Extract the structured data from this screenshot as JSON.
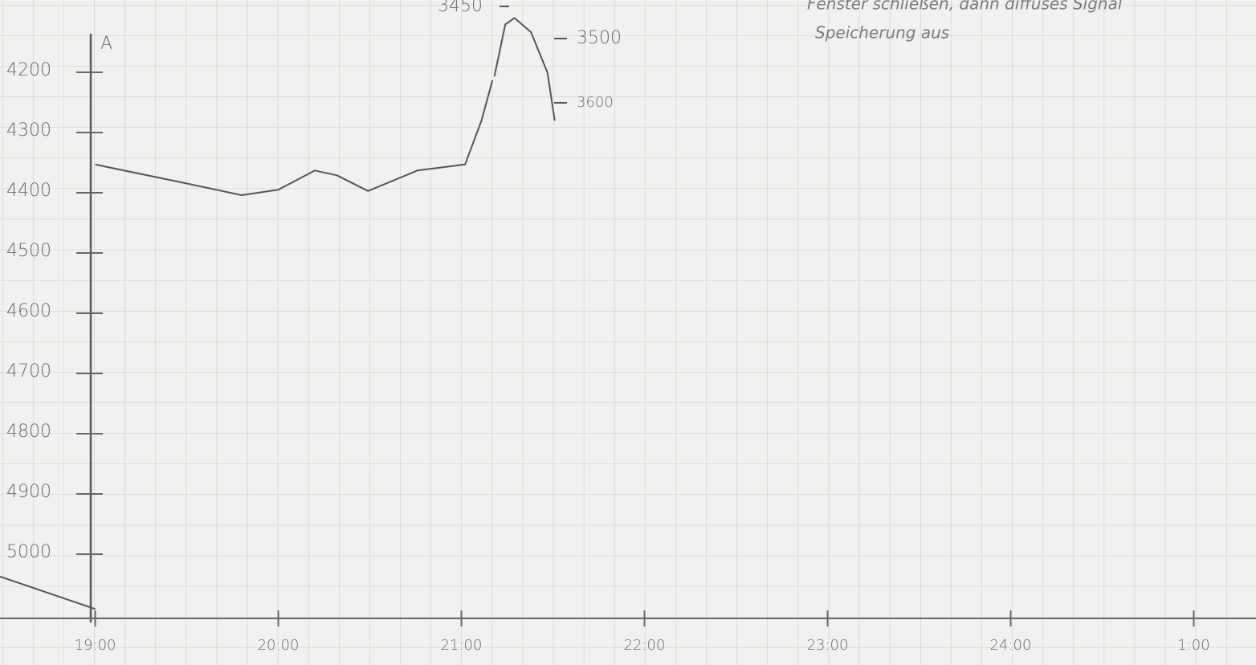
{
  "chart_data": {
    "type": "line",
    "y_label": "A",
    "annotations": [
      "Fenster schließen, dann diffuses Signal",
      "Speicherung aus"
    ],
    "xlim": [
      18.48,
      25.34
    ],
    "xticks": [
      {
        "value": 19,
        "label": "19:00"
      },
      {
        "value": 20,
        "label": "20:00"
      },
      {
        "value": 21,
        "label": "21:00"
      },
      {
        "value": 22,
        "label": "22:00"
      },
      {
        "value": 23,
        "label": "23:00"
      },
      {
        "value": 24,
        "label": "24:00"
      },
      {
        "value": 25,
        "label": "1:00"
      }
    ],
    "ylim": [
      5100,
      4100
    ],
    "yticks": [
      4200,
      4300,
      4400,
      4500,
      4600,
      4700,
      4800,
      4900,
      5000
    ],
    "y2lim": [
      4400,
      3440
    ],
    "y2ticks": [
      3450,
      3500,
      3600
    ],
    "grid": true,
    "series": [
      {
        "color": "#555555",
        "x": [
          18.48,
          19.0,
          null,
          19.0,
          19.49,
          19.8,
          20.0,
          20.2,
          20.32,
          20.49,
          20.76,
          21.02,
          21.11,
          21.17
        ],
        "values": [
          5037,
          5091,
          null,
          4353,
          4384,
          4404,
          4395,
          4363,
          4371,
          4397,
          4363,
          4353,
          4280,
          4213
        ]
      },
      {
        "color": "#555555",
        "axis": "y2",
        "x": [
          21.18,
          21.24,
          21.29,
          21.38,
          21.47,
          21.51
        ],
        "values": [
          3559,
          3478,
          3468,
          3490,
          3553,
          3628
        ]
      }
    ]
  }
}
